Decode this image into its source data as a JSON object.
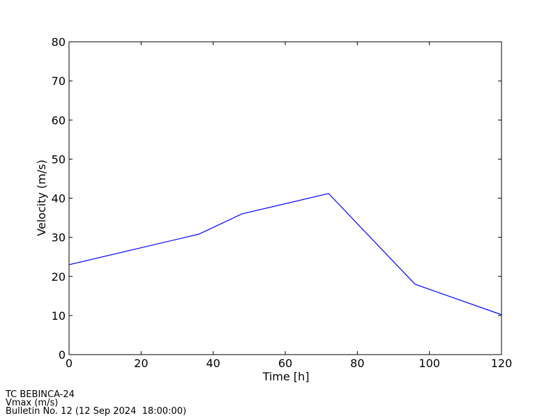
{
  "chart_data": {
    "type": "line",
    "xlabel": "Time [h]",
    "ylabel": "Velocity (m/s)",
    "x": [
      0,
      36,
      48,
      72,
      96,
      120
    ],
    "series": [
      {
        "color": "#0000ff",
        "values": [
          23.0,
          30.8,
          36.0,
          41.2,
          18.0,
          10.2
        ]
      }
    ],
    "xlim": [
      0,
      120
    ],
    "xticks": [
      0,
      20,
      40,
      60,
      80,
      100,
      120
    ],
    "ylim": [
      0,
      80
    ],
    "yticks": [
      0,
      10,
      20,
      30,
      40,
      50,
      60,
      70,
      80
    ],
    "grid": false,
    "notes": [
      "TC BEBINCA-24",
      "Vmax (m/s)",
      "Bulletin No. 12 (12 Sep 2024  18:00:00)"
    ]
  }
}
